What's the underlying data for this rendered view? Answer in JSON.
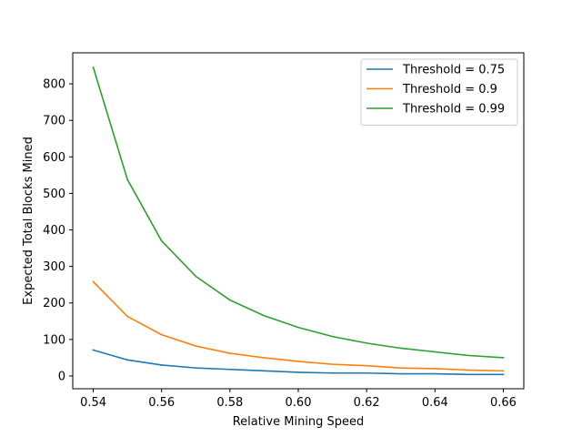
{
  "chart_data": {
    "type": "line",
    "title": "",
    "xlabel": "Relative Mining Speed",
    "ylabel": "Expected Total Blocks Mined",
    "xlim": [
      0.534,
      0.666
    ],
    "ylim": [
      -35,
      885
    ],
    "xticks": [
      0.54,
      0.56,
      0.58,
      0.6,
      0.62,
      0.64,
      0.66
    ],
    "xtick_labels": [
      "0.54",
      "0.56",
      "0.58",
      "0.60",
      "0.62",
      "0.64",
      "0.66"
    ],
    "yticks": [
      0,
      100,
      200,
      300,
      400,
      500,
      600,
      700,
      800
    ],
    "ytick_labels": [
      "0",
      "100",
      "200",
      "300",
      "400",
      "500",
      "600",
      "700",
      "800"
    ],
    "grid": false,
    "legend_position": "top-right",
    "x": [
      0.54,
      0.55,
      0.56,
      0.57,
      0.58,
      0.59,
      0.6,
      0.61,
      0.62,
      0.63,
      0.64,
      0.65,
      0.66
    ],
    "series": [
      {
        "name": "Threshold = 0.75",
        "color": "#1f77b4",
        "values": [
          71,
          44,
          30,
          22,
          18,
          14,
          10,
          8,
          8,
          6,
          6,
          4,
          4
        ]
      },
      {
        "name": "Threshold = 0.9",
        "color": "#ff7f0e",
        "values": [
          258,
          163,
          113,
          82,
          62,
          50,
          40,
          32,
          28,
          22,
          20,
          16,
          14
        ]
      },
      {
        "name": "Threshold = 0.99",
        "color": "#2ca02c",
        "values": [
          845,
          538,
          370,
          273,
          208,
          165,
          133,
          108,
          90,
          76,
          66,
          56,
          50
        ]
      }
    ]
  }
}
